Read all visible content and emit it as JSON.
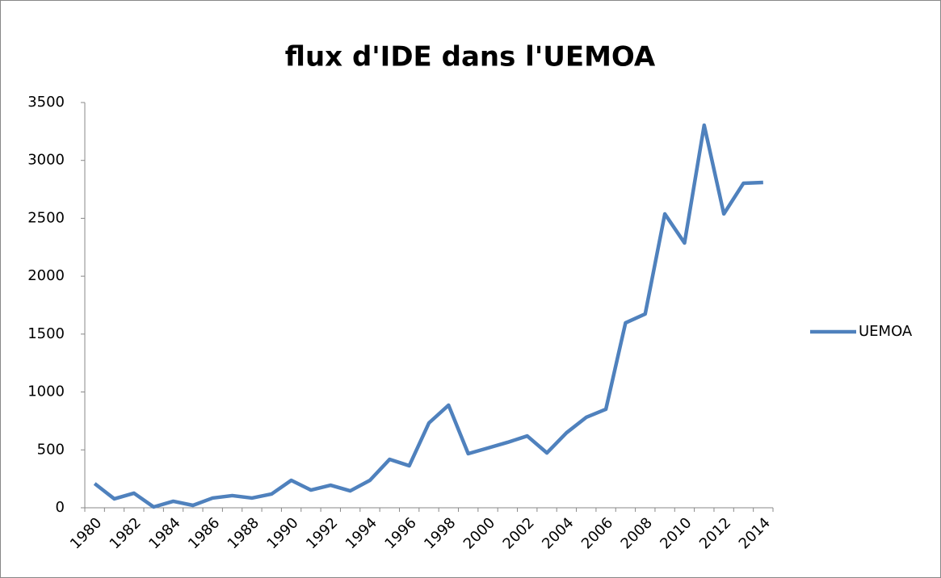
{
  "chart_data": {
    "type": "line",
    "title": "flux d'IDE dans l'UEMOA",
    "categories": [
      "1980",
      null,
      "1982",
      null,
      "1984",
      null,
      "1986",
      null,
      "1988",
      null,
      "1990",
      null,
      "1992",
      null,
      "1994",
      null,
      "1996",
      null,
      "1998",
      null,
      "2000",
      null,
      "2002",
      null,
      "2004",
      null,
      "2006",
      null,
      "2008",
      null,
      "2010",
      null,
      "2012",
      null,
      "2014"
    ],
    "series": [
      {
        "name": "UEMOA",
        "color": "#4f81bd",
        "values": [
          209,
          77,
          126,
          7,
          56,
          21,
          84,
          105,
          84,
          119,
          237,
          153,
          195,
          146,
          237,
          418,
          363,
          732,
          886,
          467,
          516,
          565,
          620,
          474,
          648,
          781,
          851,
          1597,
          1674,
          2538,
          2287,
          3304,
          2538,
          2803,
          2810
        ]
      }
    ],
    "ylim": [
      0,
      3500
    ],
    "yticks": [
      0,
      500,
      1000,
      1500,
      2000,
      2500,
      3000,
      3500
    ],
    "grid": false,
    "legend": "right"
  }
}
